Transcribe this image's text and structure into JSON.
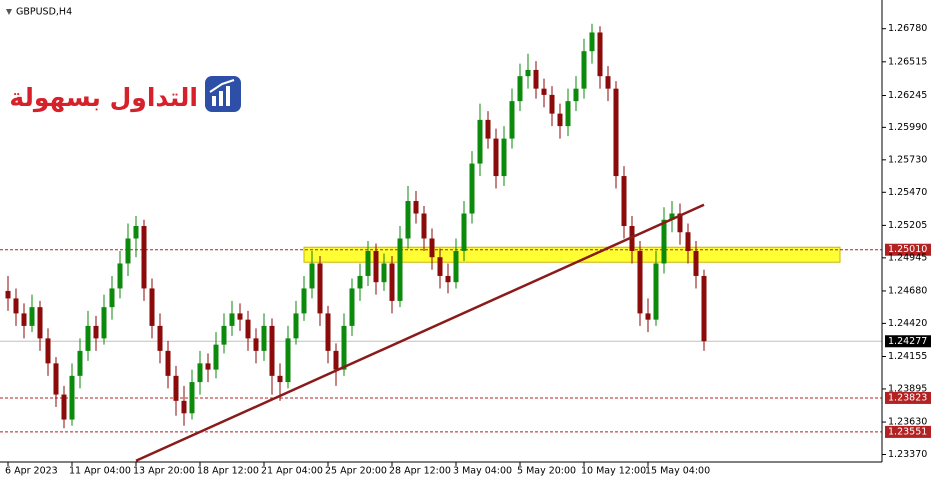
{
  "chart_data": {
    "type": "candlestick",
    "title": "GBPUSD,H4",
    "watermark": "التداول بسهولة",
    "up_color": "#0b8a0b",
    "down_color": "#8b0a0a",
    "ylim": [
      1.2331,
      1.2701
    ],
    "yticks": [
      {
        "value": 1.2678,
        "label": "1.26780"
      },
      1.26515,
      1.26245,
      {
        "value": 1.2599,
        "label": "1.25990"
      },
      {
        "value": 1.2573,
        "label": "1.25730"
      },
      {
        "value": 1.2547,
        "label": "1.25470"
      },
      1.25205,
      1.24945,
      {
        "value": 1.2468,
        "label": "1.24680"
      },
      {
        "value": 1.2442,
        "label": "1.24420"
      },
      1.24155,
      1.23895,
      {
        "value": 1.2363,
        "label": "1.23630"
      },
      {
        "value": 1.2337,
        "label": "1.23370"
      }
    ],
    "categories": [
      "6 Apr 2023",
      null,
      null,
      null,
      null,
      null,
      null,
      null,
      "11 Apr 04:00",
      null,
      null,
      null,
      null,
      null,
      null,
      null,
      "13 Apr 20:00",
      null,
      null,
      null,
      null,
      null,
      null,
      null,
      "18 Apr 12:00",
      null,
      null,
      null,
      null,
      null,
      null,
      null,
      "21 Apr 04:00",
      null,
      null,
      null,
      null,
      null,
      null,
      null,
      "25 Apr 20:00",
      null,
      null,
      null,
      null,
      null,
      null,
      null,
      "28 Apr 12:00",
      null,
      null,
      null,
      null,
      null,
      null,
      null,
      "3 May 04:00",
      null,
      null,
      null,
      null,
      null,
      null,
      null,
      "5 May 20:00",
      null,
      null,
      null,
      null,
      null,
      null,
      null,
      "10 May 12:00",
      null,
      null,
      null,
      null,
      null,
      null,
      null,
      "15 May 04:00",
      null,
      null,
      null,
      null,
      null,
      null,
      null
    ],
    "candles": [
      [
        1.2468,
        1.248,
        1.2452,
        1.2462
      ],
      [
        1.2462,
        1.247,
        1.244,
        1.245
      ],
      [
        1.245,
        1.2458,
        1.243,
        1.244
      ],
      [
        1.244,
        1.2465,
        1.2435,
        1.2455
      ],
      [
        1.2455,
        1.246,
        1.242,
        1.243
      ],
      [
        1.243,
        1.2438,
        1.24,
        1.241
      ],
      [
        1.241,
        1.2415,
        1.2375,
        1.2385
      ],
      [
        1.2385,
        1.2392,
        1.2358,
        1.2365
      ],
      [
        1.2365,
        1.241,
        1.236,
        1.24
      ],
      [
        1.24,
        1.243,
        1.239,
        1.242
      ],
      [
        1.242,
        1.2452,
        1.2412,
        1.244
      ],
      [
        1.244,
        1.2448,
        1.242,
        1.243
      ],
      [
        1.243,
        1.2465,
        1.2425,
        1.2455
      ],
      [
        1.2455,
        1.248,
        1.2445,
        1.247
      ],
      [
        1.247,
        1.25,
        1.2462,
        1.249
      ],
      [
        1.249,
        1.2522,
        1.248,
        1.251
      ],
      [
        1.251,
        1.2528,
        1.2495,
        1.252
      ],
      [
        1.252,
        1.2525,
        1.246,
        1.247
      ],
      [
        1.247,
        1.2478,
        1.243,
        1.244
      ],
      [
        1.244,
        1.245,
        1.241,
        1.242
      ],
      [
        1.242,
        1.2428,
        1.239,
        1.24
      ],
      [
        1.24,
        1.2408,
        1.2368,
        1.238
      ],
      [
        1.238,
        1.2392,
        1.236,
        1.237
      ],
      [
        1.237,
        1.2405,
        1.2365,
        1.2395
      ],
      [
        1.2395,
        1.242,
        1.2385,
        1.241
      ],
      [
        1.241,
        1.2418,
        1.2395,
        1.2405
      ],
      [
        1.2405,
        1.2435,
        1.2398,
        1.2425
      ],
      [
        1.2425,
        1.245,
        1.2418,
        1.244
      ],
      [
        1.244,
        1.246,
        1.2432,
        1.245
      ],
      [
        1.245,
        1.2458,
        1.2436,
        1.2445
      ],
      [
        1.2445,
        1.2452,
        1.242,
        1.243
      ],
      [
        1.243,
        1.2438,
        1.241,
        1.242
      ],
      [
        1.242,
        1.245,
        1.2412,
        1.244
      ],
      [
        1.244,
        1.2446,
        1.2385,
        1.24
      ],
      [
        1.24,
        1.241,
        1.238,
        1.2395
      ],
      [
        1.2395,
        1.244,
        1.239,
        1.243
      ],
      [
        1.243,
        1.246,
        1.2425,
        1.245
      ],
      [
        1.245,
        1.248,
        1.2444,
        1.247
      ],
      [
        1.247,
        1.25,
        1.2462,
        1.249
      ],
      [
        1.249,
        1.2496,
        1.244,
        1.245
      ],
      [
        1.245,
        1.2456,
        1.241,
        1.242
      ],
      [
        1.242,
        1.2426,
        1.2392,
        1.2405
      ],
      [
        1.2405,
        1.245,
        1.24,
        1.244
      ],
      [
        1.244,
        1.2478,
        1.2432,
        1.247
      ],
      [
        1.247,
        1.249,
        1.246,
        1.248
      ],
      [
        1.248,
        1.2508,
        1.2472,
        1.25
      ],
      [
        1.25,
        1.2506,
        1.2465,
        1.2475
      ],
      [
        1.2475,
        1.2498,
        1.2468,
        1.249
      ],
      [
        1.249,
        1.2496,
        1.245,
        1.246
      ],
      [
        1.246,
        1.252,
        1.2455,
        1.251
      ],
      [
        1.251,
        1.2552,
        1.2502,
        1.254
      ],
      [
        1.254,
        1.2548,
        1.2522,
        1.253
      ],
      [
        1.253,
        1.2536,
        1.25,
        1.251
      ],
      [
        1.251,
        1.2518,
        1.2485,
        1.2495
      ],
      [
        1.2495,
        1.2502,
        1.247,
        1.248
      ],
      [
        1.248,
        1.249,
        1.2466,
        1.2475
      ],
      [
        1.2475,
        1.251,
        1.247,
        1.25
      ],
      [
        1.25,
        1.254,
        1.2492,
        1.253
      ],
      [
        1.253,
        1.258,
        1.2522,
        1.257
      ],
      [
        1.257,
        1.2618,
        1.256,
        1.2605
      ],
      [
        1.2605,
        1.2612,
        1.2582,
        1.259
      ],
      [
        1.259,
        1.2598,
        1.255,
        1.256
      ],
      [
        1.256,
        1.26,
        1.2552,
        1.259
      ],
      [
        1.259,
        1.263,
        1.2582,
        1.262
      ],
      [
        1.262,
        1.265,
        1.2612,
        1.264
      ],
      [
        1.264,
        1.2658,
        1.263,
        1.2645
      ],
      [
        1.2645,
        1.2652,
        1.2622,
        1.263
      ],
      [
        1.263,
        1.2638,
        1.2615,
        1.2625
      ],
      [
        1.2625,
        1.2632,
        1.26,
        1.261
      ],
      [
        1.261,
        1.2618,
        1.259,
        1.26
      ],
      [
        1.26,
        1.263,
        1.2592,
        1.262
      ],
      [
        1.262,
        1.264,
        1.2612,
        1.263
      ],
      [
        1.263,
        1.267,
        1.2622,
        1.266
      ],
      [
        1.266,
        1.2682,
        1.265,
        1.2675
      ],
      [
        1.2675,
        1.268,
        1.263,
        1.264
      ],
      [
        1.264,
        1.2648,
        1.262,
        1.263
      ],
      [
        1.263,
        1.2636,
        1.255,
        1.256
      ],
      [
        1.256,
        1.2568,
        1.251,
        1.252
      ],
      [
        1.252,
        1.2528,
        1.249,
        1.25
      ],
      [
        1.25,
        1.2508,
        1.244,
        1.245
      ],
      [
        1.245,
        1.2462,
        1.2435,
        1.2445
      ],
      [
        1.2445,
        1.25,
        1.244,
        1.249
      ],
      [
        1.249,
        1.2535,
        1.2482,
        1.2525
      ],
      [
        1.2525,
        1.254,
        1.2515,
        1.253
      ],
      [
        1.253,
        1.2538,
        1.2505,
        1.2515
      ],
      [
        1.2515,
        1.2522,
        1.249,
        1.25
      ],
      [
        1.25,
        1.2508,
        1.247,
        1.248
      ],
      [
        1.248,
        1.2485,
        1.242,
        1.24277
      ]
    ],
    "levels": [
      {
        "value": 1.2501,
        "label": "1.25010",
        "color": "#b22222"
      },
      {
        "value": 1.23823,
        "color": "#b22222"
      },
      {
        "value": 1.23551,
        "color": "#b22222"
      }
    ],
    "current_price": {
      "value": 1.24277,
      "color": "#000000"
    },
    "zone": {
      "low": 1.2491,
      "high": 1.2503,
      "start": 37,
      "color": "#ffff33"
    },
    "trendline": {
      "start": 16,
      "end": 87,
      "values": [
        1.2332,
        1.2537
      ],
      "color": "#8b1a1a"
    }
  }
}
